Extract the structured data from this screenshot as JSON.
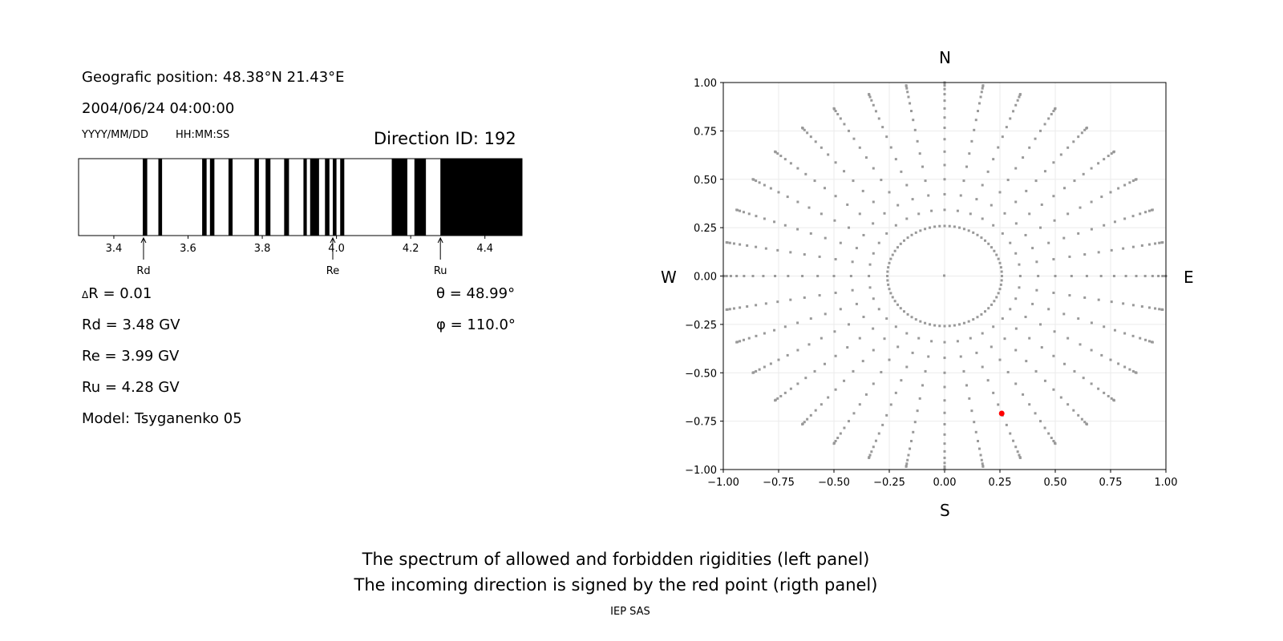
{
  "left": {
    "position": "Geografic position: 48.38°N 21.43°E",
    "datetime": "2004/06/24 04:00:00",
    "date_fmt": "YYYY/MM/DD",
    "time_fmt": "HH:MM:SS",
    "direction": "Direction ID: 192",
    "dR": "R = 0.01",
    "dR_symbol": "Δ",
    "Rd": "Rd = 3.48 GV",
    "Re": "Re = 3.99 GV",
    "Ru": "Ru = 4.28 GV",
    "model": "Model: Tsyganenko 05",
    "theta": "θ = 48.99°",
    "phi": "φ = 110.0°"
  },
  "compass": {
    "N": "N",
    "S": "S",
    "W": "W",
    "E": "E"
  },
  "caption": {
    "line1": "The spectrum of allowed and forbidden rigidities (left panel)",
    "line2": "The incoming direction is signed by the red point (rigth panel)",
    "credit": "IEP SAS"
  },
  "chart_data": [
    {
      "type": "bar",
      "subtype": "spectrum-bands",
      "xlim": [
        3.305,
        4.5
      ],
      "xticks": [
        3.4,
        3.6,
        3.8,
        4.0,
        4.2,
        4.4
      ],
      "forbidden_bands": [
        [
          3.478,
          3.49
        ],
        [
          3.52,
          3.53
        ],
        [
          3.638,
          3.65
        ],
        [
          3.659,
          3.671
        ],
        [
          3.709,
          3.72
        ],
        [
          3.779,
          3.791
        ],
        [
          3.809,
          3.822
        ],
        [
          3.859,
          3.872
        ],
        [
          3.911,
          3.92
        ],
        [
          3.929,
          3.953
        ],
        [
          3.969,
          3.981
        ],
        [
          3.99,
          4.0
        ],
        [
          4.01,
          4.021
        ],
        [
          4.149,
          4.191
        ],
        [
          4.21,
          4.241
        ],
        [
          4.28,
          4.5
        ]
      ],
      "band_color": "#000000",
      "markers": [
        {
          "label": "Rd",
          "x": 3.48
        },
        {
          "label": "Re",
          "x": 3.99
        },
        {
          "label": "Ru",
          "x": 4.28
        }
      ]
    },
    {
      "type": "scatter",
      "xlim": [
        -1,
        1
      ],
      "ylim": [
        -1,
        1
      ],
      "grid": true,
      "xticks": [
        -1,
        -0.75,
        -0.5,
        -0.25,
        0,
        0.25,
        0.5,
        0.75,
        1
      ],
      "yticks": [
        -1,
        -0.75,
        -0.5,
        -0.25,
        0,
        0.25,
        0.5,
        0.75,
        1
      ],
      "grid_series": {
        "azimuth_step_deg": 10,
        "zenith_deg": [
          15,
          20,
          25,
          30,
          35,
          40,
          45,
          50,
          55,
          60,
          65,
          70,
          75,
          80,
          85,
          90
        ],
        "inner_circle_zenith_deg": 15,
        "color": "#999999"
      },
      "highlight": {
        "x": 0.258,
        "y": -0.71,
        "color": "#ff0000"
      }
    }
  ]
}
